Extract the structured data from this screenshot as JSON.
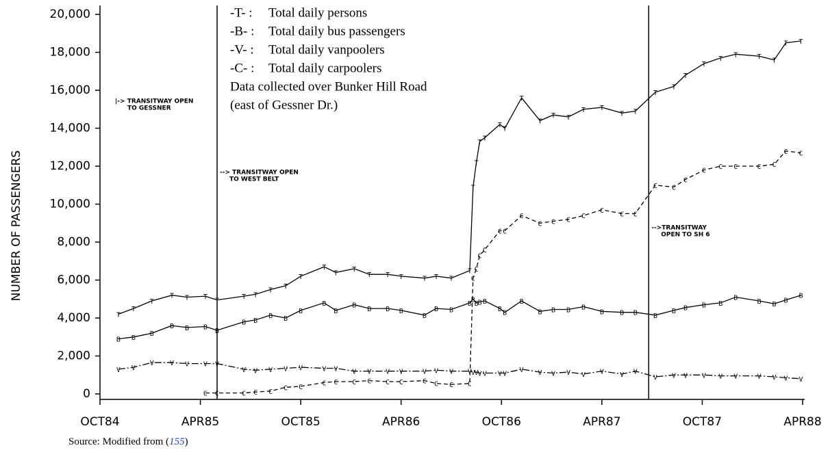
{
  "chart_data": {
    "type": "line",
    "y_label": "NUMBER OF PASSENGERS",
    "x": [
      1.1,
      2.0,
      3.1,
      4.3,
      5.2,
      6.3,
      7.0,
      8.6,
      9.3,
      10.2,
      11.1,
      12.0,
      13.4,
      14.1,
      15.2,
      16.1,
      17.2,
      18.0,
      19.4,
      20.1,
      21.0,
      22.1,
      22.3,
      22.5,
      22.7,
      23.0,
      23.9,
      24.2,
      25.2,
      26.3,
      27.1,
      28.0,
      28.9,
      30.0,
      31.2,
      32.0,
      33.2,
      34.3,
      35.0,
      36.1,
      37.1,
      38.0,
      39.4,
      40.3,
      41.0,
      41.9
    ],
    "series": [
      {
        "name": "Total daily persons",
        "key": "-T- :",
        "marker": "T",
        "color": "#000",
        "dash": "",
        "values": [
          4200,
          4500,
          4900,
          5200,
          5100,
          5150,
          4950,
          5150,
          5250,
          5500,
          5700,
          6200,
          6700,
          6400,
          6600,
          6300,
          6300,
          6200,
          6100,
          6200,
          6100,
          6500,
          10900,
          12200,
          13300,
          13500,
          14200,
          14000,
          15600,
          14400,
          14700,
          14600,
          15000,
          15100,
          14800,
          14900,
          15900,
          16200,
          16800,
          17400,
          17700,
          17900,
          17800,
          17600,
          18500,
          18600
        ]
      },
      {
        "name": "Total daily bus passengers",
        "key": "-B- :",
        "marker": "B",
        "color": "#000",
        "dash": "",
        "values": [
          2900,
          3000,
          3200,
          3600,
          3500,
          3550,
          3350,
          3800,
          3900,
          4150,
          4000,
          4400,
          4800,
          4400,
          4700,
          4500,
          4500,
          4400,
          4150,
          4500,
          4450,
          4800,
          5000,
          4800,
          4850,
          4900,
          4500,
          4300,
          4900,
          4350,
          4450,
          4450,
          4600,
          4350,
          4300,
          4300,
          4150,
          4400,
          4550,
          4700,
          4800,
          5100,
          4900,
          4750,
          4950,
          5200
        ]
      },
      {
        "name": "Total daily vanpoolers",
        "key": "-V- :",
        "marker": "V",
        "color": "#000",
        "dash": "10 3 2 3",
        "values": [
          1300,
          1400,
          1650,
          1650,
          1600,
          1600,
          1600,
          1300,
          1250,
          1300,
          1350,
          1400,
          1350,
          1350,
          1200,
          1200,
          1200,
          1200,
          1200,
          1250,
          1200,
          1200,
          1150,
          1150,
          1100,
          1100,
          1100,
          1100,
          1300,
          1150,
          1100,
          1150,
          1050,
          1200,
          1050,
          1200,
          900,
          1000,
          1000,
          1000,
          950,
          950,
          950,
          900,
          850,
          800
        ]
      },
      {
        "name": "Total daily carpoolers",
        "key": "-C- :",
        "marker": "C",
        "color": "#000",
        "dash": "6 4",
        "values": [
          null,
          null,
          null,
          null,
          null,
          50,
          50,
          50,
          100,
          150,
          350,
          400,
          600,
          650,
          650,
          700,
          650,
          650,
          700,
          550,
          500,
          550,
          6100,
          6600,
          7300,
          7600,
          8600,
          8600,
          9400,
          9000,
          9100,
          9200,
          9400,
          9700,
          9500,
          9500,
          11000,
          10900,
          11300,
          11800,
          12000,
          12000,
          12000,
          12100,
          12800,
          12700
        ]
      }
    ],
    "notes": [
      "Data collected over Bunker Hill Road",
      "(east of Gessner Dr.)"
    ],
    "xlim": [
      0,
      42
    ],
    "xticks": [
      {
        "value": 0,
        "label": "OCT84"
      },
      {
        "value": 6,
        "label": "APR85"
      },
      {
        "value": 12,
        "label": "OCT85"
      },
      {
        "value": 18,
        "label": "APR86"
      },
      {
        "value": 24,
        "label": "OCT86"
      },
      {
        "value": 30,
        "label": "APR87"
      },
      {
        "value": 36,
        "label": "OCT87"
      },
      {
        "value": 42,
        "label": "APR88"
      }
    ],
    "ylim": [
      0,
      20000
    ],
    "yticks": [
      0,
      {
        "value": 2000,
        "label": "2,000"
      },
      {
        "value": 4000,
        "label": "4,000"
      },
      {
        "value": 6000,
        "label": "6,000"
      },
      {
        "value": 8000,
        "label": "8,000"
      },
      {
        "value": 10000,
        "label": "10,000"
      },
      {
        "value": 12000,
        "label": "12,000"
      },
      {
        "value": 14000,
        "label": "14,000"
      },
      {
        "value": 16000,
        "label": "16,000"
      },
      {
        "value": 18000,
        "label": "18,000"
      },
      {
        "value": 20000,
        "label": "20,000"
      }
    ],
    "events": [
      {
        "x": 7.0,
        "label": [
          "--> TRANSITWAY OPEN",
          "TO WEST BELT"
        ]
      },
      {
        "x": 32.8,
        "label": [
          "-->TRANSITWAY",
          "OPEN TO SH 6"
        ]
      }
    ],
    "start_note": [
      "|-> TRANSITWAY OPEN",
      "TO GESSNER"
    ],
    "source": {
      "text": "Source: Modified from (",
      "ref": "155",
      "close": ")"
    }
  }
}
